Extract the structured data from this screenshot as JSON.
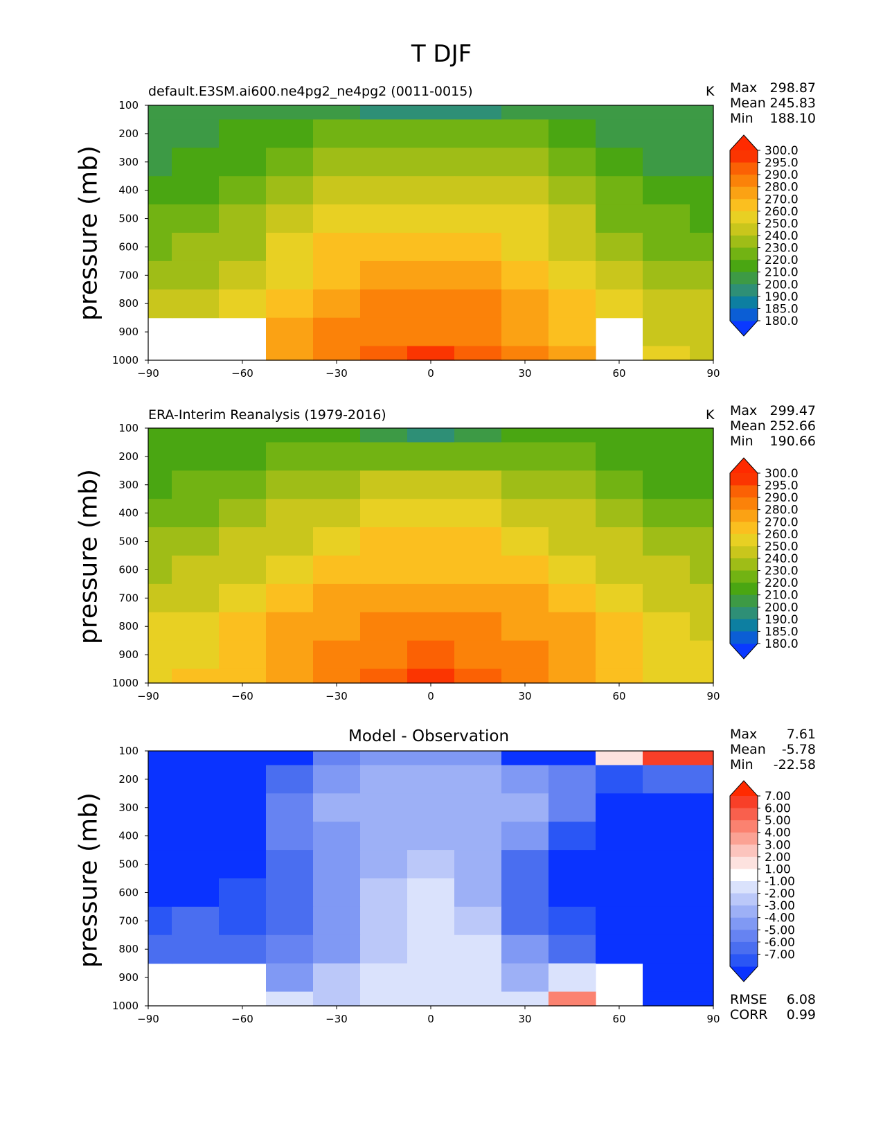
{
  "suptitle": "T DJF",
  "panels": [
    {
      "title": "default.E3SM.ai600.ne4pg2_ne4pg2 (0011-0015)",
      "units": "K",
      "ylabel": "pressure (mb)",
      "stats": [
        {
          "label": "Max",
          "value": "298.87"
        },
        {
          "label": "Mean",
          "value": "245.83"
        },
        {
          "label": "Min",
          "value": "188.10"
        }
      ],
      "bottom_stats": []
    },
    {
      "title": "ERA-Interim Reanalysis (1979-2016)",
      "units": "K",
      "ylabel": "pressure (mb)",
      "stats": [
        {
          "label": "Max",
          "value": "299.47"
        },
        {
          "label": "Mean",
          "value": "252.66"
        },
        {
          "label": "Min",
          "value": "190.66"
        }
      ],
      "bottom_stats": []
    },
    {
      "title": "Model - Observation",
      "units": "",
      "ylabel": "pressure (mb)",
      "stats": [
        {
          "label": "Max",
          "value": "7.61"
        },
        {
          "label": "Mean",
          "value": "-5.78"
        },
        {
          "label": "Min",
          "value": "-22.58"
        }
      ],
      "bottom_stats": [
        {
          "label": "RMSE",
          "value": "6.08"
        },
        {
          "label": "CORR",
          "value": "0.99"
        }
      ]
    }
  ],
  "chart_data": [
    {
      "type": "heatmap",
      "title": "default.E3SM.ai600.ne4pg2_ne4pg2 (0011-0015)",
      "xlabel": "",
      "ylabel": "pressure (mb)",
      "units": "K",
      "xlim": [
        -90,
        90
      ],
      "ylim": [
        1000,
        100
      ],
      "xticks": [
        "−90",
        "−60",
        "−30",
        "0",
        "30",
        "60",
        "90"
      ],
      "yticks": [
        "100",
        "200",
        "300",
        "400",
        "500",
        "600",
        "700",
        "800",
        "900",
        "1000"
      ],
      "x": [
        -90,
        -75,
        -60,
        -45,
        -30,
        -15,
        0,
        15,
        30,
        45,
        60,
        75,
        90
      ],
      "y": [
        100,
        200,
        300,
        400,
        500,
        600,
        700,
        800,
        900,
        1000
      ],
      "values": [
        [
          203,
          204,
          205,
          203,
          200,
          195,
          190,
          195,
          200,
          205,
          209,
          208,
          209
        ],
        [
          204,
          205,
          210,
          218,
          222,
          224,
          225,
          224,
          222,
          216,
          205,
          202,
          203
        ],
        [
          207,
          210,
          216,
          226,
          233,
          237,
          238,
          237,
          234,
          225,
          213,
          205,
          204
        ],
        [
          214,
          218,
          224,
          233,
          242,
          247,
          249,
          247,
          243,
          233,
          221,
          213,
          212
        ],
        [
          222,
          226,
          232,
          242,
          251,
          257,
          259,
          257,
          251,
          241,
          229,
          220,
          219
        ],
        [
          229,
          233,
          239,
          250,
          260,
          266,
          268,
          266,
          259,
          248,
          236,
          228,
          226
        ],
        [
          236,
          239,
          246,
          258,
          267,
          273,
          275,
          273,
          266,
          255,
          244,
          235,
          233
        ],
        [
          242,
          245,
          253,
          265,
          274,
          280,
          282,
          280,
          273,
          262,
          251,
          243,
          240
        ],
        [
          null,
          null,
          null,
          271,
          280,
          286,
          289,
          286,
          279,
          268,
          null,
          249,
          245
        ],
        [
          null,
          null,
          null,
          274,
          285,
          292,
          296,
          292,
          283,
          271,
          null,
          250,
          246
        ]
      ],
      "levels": [
        180,
        185,
        190,
        200,
        210,
        220,
        230,
        240,
        250,
        260,
        270,
        280,
        290,
        295,
        300
      ],
      "colorbar_labels": [
        "300.0",
        "295.0",
        "290.0",
        "280.0",
        "270.0",
        "260.0",
        "250.0",
        "240.0",
        "230.0",
        "220.0",
        "210.0",
        "200.0",
        "190.0",
        "185.0",
        "180.0"
      ],
      "colors": [
        "#0a39ff",
        "#0b5ed5",
        "#0d7fa1",
        "#2e8f76",
        "#3d9a45",
        "#4aa612",
        "#72b313",
        "#9fbd17",
        "#c9c61c",
        "#e8d023",
        "#fbbf1f",
        "#fba214",
        "#fb8209",
        "#fb6104",
        "#fb3501",
        "#ff2a00"
      ],
      "grid": false
    },
    {
      "type": "heatmap",
      "title": "ERA-Interim Reanalysis (1979-2016)",
      "xlabel": "",
      "ylabel": "pressure (mb)",
      "units": "K",
      "xlim": [
        -90,
        90
      ],
      "ylim": [
        1000,
        100
      ],
      "xticks": [
        "−90",
        "−60",
        "−30",
        "0",
        "30",
        "60",
        "90"
      ],
      "yticks": [
        "100",
        "200",
        "300",
        "400",
        "500",
        "600",
        "700",
        "800",
        "900",
        "1000"
      ],
      "x": [
        -90,
        -75,
        -60,
        -45,
        -30,
        -15,
        0,
        15,
        30,
        45,
        60,
        75,
        90
      ],
      "y": [
        100,
        200,
        300,
        400,
        500,
        600,
        700,
        800,
        900,
        1000
      ],
      "values": [
        [
          216,
          216,
          216,
          214,
          210,
          204,
          198,
          203,
          210,
          215,
          218,
          214,
          210
        ],
        [
          216,
          217,
          218,
          221,
          225,
          227,
          228,
          227,
          225,
          222,
          219,
          217,
          216
        ],
        [
          218,
          220,
          224,
          231,
          236,
          240,
          241,
          240,
          237,
          231,
          224,
          219,
          217
        ],
        [
          224,
          227,
          233,
          240,
          246,
          250,
          252,
          250,
          247,
          240,
          232,
          225,
          222
        ],
        [
          231,
          235,
          241,
          249,
          255,
          260,
          261,
          260,
          256,
          249,
          240,
          233,
          230
        ],
        [
          238,
          242,
          249,
          257,
          263,
          268,
          269,
          268,
          264,
          257,
          248,
          240,
          236
        ],
        [
          244,
          248,
          255,
          264,
          270,
          275,
          276,
          275,
          271,
          264,
          255,
          246,
          241
        ],
        [
          250,
          254,
          261,
          270,
          277,
          282,
          283,
          282,
          277,
          270,
          261,
          252,
          246
        ],
        [
          254,
          258,
          265,
          275,
          283,
          288,
          290,
          288,
          283,
          275,
          266,
          257,
          250
        ],
        [
          256,
          260,
          268,
          278,
          288,
          294,
          297,
          294,
          287,
          278,
          268,
          259,
          251
        ]
      ],
      "levels": [
        180,
        185,
        190,
        200,
        210,
        220,
        230,
        240,
        250,
        260,
        270,
        280,
        290,
        295,
        300
      ],
      "colorbar_labels": [
        "300.0",
        "295.0",
        "290.0",
        "280.0",
        "270.0",
        "260.0",
        "250.0",
        "240.0",
        "230.0",
        "220.0",
        "210.0",
        "200.0",
        "190.0",
        "185.0",
        "180.0"
      ],
      "colors": [
        "#0a39ff",
        "#0b5ed5",
        "#0d7fa1",
        "#2e8f76",
        "#3d9a45",
        "#4aa612",
        "#72b313",
        "#9fbd17",
        "#c9c61c",
        "#e8d023",
        "#fbbf1f",
        "#fba214",
        "#fb8209",
        "#fb6104",
        "#fb3501",
        "#ff2a00"
      ],
      "grid": false
    },
    {
      "type": "heatmap",
      "title": "Model - Observation",
      "xlabel": "",
      "ylabel": "pressure (mb)",
      "units": "",
      "xlim": [
        -90,
        90
      ],
      "ylim": [
        1000,
        100
      ],
      "xticks": [
        "−90",
        "−60",
        "−30",
        "0",
        "30",
        "60",
        "90"
      ],
      "yticks": [
        "100",
        "200",
        "300",
        "400",
        "500",
        "600",
        "700",
        "800",
        "900",
        "1000"
      ],
      "x": [
        -90,
        -75,
        -60,
        -45,
        -30,
        -15,
        0,
        15,
        30,
        45,
        60,
        75,
        90
      ],
      "y": [
        100,
        200,
        300,
        400,
        500,
        600,
        700,
        800,
        900,
        1000
      ],
      "values": [
        [
          -13,
          -12,
          -11,
          -8,
          -5,
          -4,
          -3.5,
          -4,
          -9,
          -8,
          2,
          7,
          8
        ],
        [
          -12,
          -12,
          -10,
          -6,
          -4,
          -3,
          -3,
          -3,
          -4,
          -5,
          -7,
          -6,
          -6
        ],
        [
          -11,
          -11,
          -9,
          -5,
          -3,
          -3,
          -3,
          -3,
          -2.5,
          -5,
          -8,
          -9,
          -10
        ],
        [
          -10,
          -10,
          -9,
          -5,
          -4,
          -2.5,
          -3,
          -3,
          -4,
          -7,
          -10,
          -12,
          -12
        ],
        [
          -9,
          -9,
          -8,
          -6,
          -4,
          -2.5,
          -2,
          -3,
          -6,
          -8,
          -10,
          -12,
          -13
        ],
        [
          -8,
          -8,
          -7,
          -6,
          -4,
          -1.5,
          -1,
          -3,
          -6,
          -8,
          -10,
          -11,
          -12
        ],
        [
          -7,
          -6,
          -7,
          -6,
          -4,
          -1.5,
          -1,
          -2,
          -6,
          -7,
          -9,
          -10,
          -11
        ],
        [
          -6,
          -6,
          -6,
          -5,
          -4,
          -1.5,
          -0.5,
          -1,
          -4,
          -6,
          -8,
          -9,
          -10
        ],
        [
          null,
          null,
          null,
          -4,
          -2,
          -0.5,
          0,
          -1,
          -3,
          -1,
          null,
          -8,
          -8
        ],
        [
          null,
          null,
          null,
          -1,
          -2,
          0,
          0,
          0,
          -1,
          5,
          null,
          -9,
          -9
        ]
      ],
      "levels": [
        -7,
        -6,
        -5,
        -4,
        -3,
        -2,
        -1,
        1,
        2,
        3,
        4,
        5,
        6,
        7
      ],
      "colorbar_labels": [
        "7.00",
        "6.00",
        "5.00",
        "4.00",
        "3.00",
        "2.00",
        "1.00",
        "-1.00",
        "-2.00",
        "-3.00",
        "-4.00",
        "-5.00",
        "-6.00",
        "-7.00"
      ],
      "colors": [
        "#0a33ff",
        "#2a56f5",
        "#4a6ef0",
        "#6683f2",
        "#8099f4",
        "#9db0f6",
        "#bbc8f9",
        "#dae2fc",
        "#ffffff",
        "#fde2df",
        "#fcc4bd",
        "#fba294",
        "#fb8270",
        "#f9604d",
        "#f83f28",
        "#ff2a00"
      ],
      "grid": false
    }
  ]
}
